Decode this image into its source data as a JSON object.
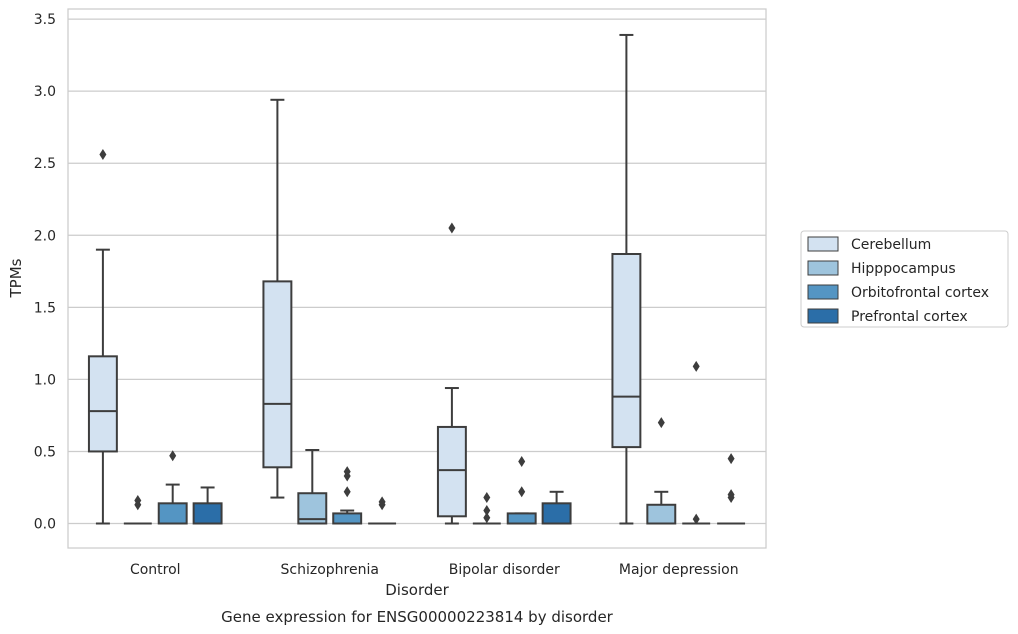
{
  "caption": "Gene expression for ENSG00000223814 by disorder",
  "chart_data": {
    "type": "box",
    "xlabel": "Disorder",
    "ylabel": "TPMs",
    "ylim": [
      -0.17,
      3.57
    ],
    "yticks": [
      "0.0",
      "0.5",
      "1.0",
      "1.5",
      "2.0",
      "2.5",
      "3.0",
      "3.5"
    ],
    "grid": "horizontal",
    "legend_position": "right",
    "categories": [
      "Control",
      "Schizophrenia",
      "Bipolar disorder",
      "Major depression"
    ],
    "series": [
      {
        "name": "Cerebellum",
        "color": "#d3e2f1",
        "boxes": [
          {
            "min": 0.0,
            "q1": 0.5,
            "median": 0.78,
            "q3": 1.16,
            "max": 1.9,
            "outliers": [
              2.56
            ]
          },
          {
            "min": 0.18,
            "q1": 0.39,
            "median": 0.83,
            "q3": 1.68,
            "max": 2.94,
            "outliers": []
          },
          {
            "min": 0.0,
            "q1": 0.05,
            "median": 0.37,
            "q3": 0.67,
            "max": 0.94,
            "outliers": [
              2.05
            ]
          },
          {
            "min": 0.0,
            "q1": 0.53,
            "median": 0.88,
            "q3": 1.87,
            "max": 3.39,
            "outliers": []
          }
        ]
      },
      {
        "name": "Hipppocampus",
        "color": "#9ec4dd",
        "boxes": [
          {
            "min": 0.0,
            "q1": 0.0,
            "median": 0.0,
            "q3": 0.0,
            "max": 0.0,
            "outliers": [
              0.13,
              0.16
            ]
          },
          {
            "min": 0.0,
            "q1": 0.0,
            "median": 0.03,
            "q3": 0.21,
            "max": 0.51,
            "outliers": []
          },
          {
            "min": 0.0,
            "q1": 0.0,
            "median": 0.0,
            "q3": 0.0,
            "max": 0.0,
            "outliers": [
              0.04,
              0.09,
              0.18
            ]
          },
          {
            "min": 0.0,
            "q1": 0.0,
            "median": 0.0,
            "q3": 0.13,
            "max": 0.22,
            "outliers": [
              0.7
            ]
          }
        ]
      },
      {
        "name": "Orbitofrontal cortex",
        "color": "#5495c3",
        "boxes": [
          {
            "min": 0.0,
            "q1": 0.0,
            "median": 0.0,
            "q3": 0.14,
            "max": 0.27,
            "outliers": [
              0.47
            ]
          },
          {
            "min": 0.0,
            "q1": 0.0,
            "median": 0.0,
            "q3": 0.07,
            "max": 0.09,
            "outliers": [
              0.22,
              0.33,
              0.36
            ]
          },
          {
            "min": 0.0,
            "q1": 0.0,
            "median": 0.0,
            "q3": 0.07,
            "max": 0.07,
            "outliers": [
              0.22,
              0.43
            ]
          },
          {
            "min": 0.0,
            "q1": 0.0,
            "median": 0.0,
            "q3": 0.0,
            "max": 0.0,
            "outliers": [
              0.03,
              1.09
            ]
          }
        ]
      },
      {
        "name": "Prefrontal cortex",
        "color": "#2b6ea8",
        "boxes": [
          {
            "min": 0.0,
            "q1": 0.0,
            "median": 0.0,
            "q3": 0.14,
            "max": 0.25,
            "outliers": []
          },
          {
            "min": 0.0,
            "q1": 0.0,
            "median": 0.0,
            "q3": 0.0,
            "max": 0.0,
            "outliers": [
              0.13,
              0.15
            ]
          },
          {
            "min": 0.0,
            "q1": 0.0,
            "median": 0.0,
            "q3": 0.14,
            "max": 0.22,
            "outliers": []
          },
          {
            "min": 0.0,
            "q1": 0.0,
            "median": 0.0,
            "q3": 0.0,
            "max": 0.0,
            "outliers": [
              0.18,
              0.2,
              0.45
            ]
          }
        ]
      }
    ]
  }
}
